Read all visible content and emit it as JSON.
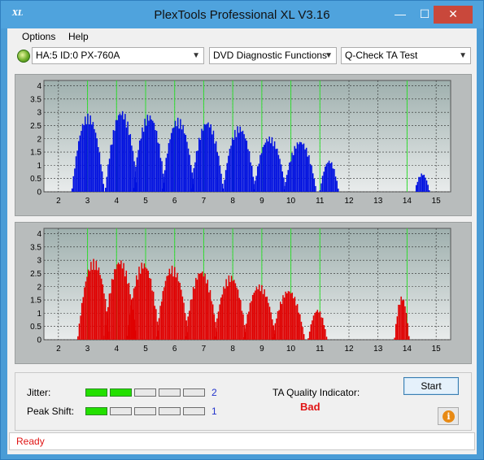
{
  "window": {
    "title": "PlexTools Professional XL V3.16",
    "icon_text": "XL"
  },
  "menu": {
    "options": "Options",
    "help": "Help"
  },
  "toolbar": {
    "drive": "HA:5 ID:0  PX-760A",
    "function": "DVD Diagnostic Functions",
    "test": "Q-Check TA Test"
  },
  "graphs": {
    "x_ticks": [
      "2",
      "3",
      "4",
      "5",
      "6",
      "7",
      "8",
      "9",
      "10",
      "11",
      "12",
      "13",
      "14",
      "15"
    ],
    "y_ticks": [
      "0",
      "0.5",
      "1",
      "1.5",
      "2",
      "2.5",
      "3",
      "3.5",
      "4"
    ],
    "green_lines": [
      3,
      4,
      5,
      6,
      7,
      8,
      9,
      10,
      11,
      14
    ],
    "top_color": "#0010e0",
    "bottom_color": "#e00000"
  },
  "chart_data": [
    {
      "type": "bar",
      "series": [
        {
          "name": "",
          "color": "#0010e0"
        }
      ],
      "xlim": [
        1.5,
        15.5
      ],
      "ylim": [
        0,
        4.2
      ],
      "peaks": [
        {
          "x": 3.0,
          "y": 2.95
        },
        {
          "x": 4.15,
          "y": 3.1
        },
        {
          "x": 5.1,
          "y": 2.95
        },
        {
          "x": 6.1,
          "y": 2.8
        },
        {
          "x": 7.1,
          "y": 2.7
        },
        {
          "x": 8.2,
          "y": 2.5
        },
        {
          "x": 9.25,
          "y": 2.1
        },
        {
          "x": 10.3,
          "y": 1.95
        },
        {
          "x": 11.3,
          "y": 1.2
        },
        {
          "x": 14.5,
          "y": 0.7
        }
      ]
    },
    {
      "type": "bar",
      "series": [
        {
          "name": "",
          "color": "#e00000"
        }
      ],
      "xlim": [
        1.5,
        15.5
      ],
      "ylim": [
        0,
        4.2
      ],
      "peaks": [
        {
          "x": 3.2,
          "y": 3.05
        },
        {
          "x": 4.1,
          "y": 3.05
        },
        {
          "x": 4.9,
          "y": 2.95
        },
        {
          "x": 5.9,
          "y": 2.8
        },
        {
          "x": 6.9,
          "y": 2.65
        },
        {
          "x": 7.9,
          "y": 2.45
        },
        {
          "x": 8.9,
          "y": 2.1
        },
        {
          "x": 9.9,
          "y": 1.9
        },
        {
          "x": 10.9,
          "y": 1.15
        },
        {
          "x": 13.8,
          "y": 1.65
        }
      ]
    }
  ],
  "bottom": {
    "jitter_label": "Jitter:",
    "jitter_value": "2",
    "jitter_level": 2,
    "peak_label": "Peak Shift:",
    "peak_value": "1",
    "peak_level": 1,
    "segments": 5,
    "ta_label": "TA Quality Indicator:",
    "ta_value": "Bad",
    "start_label": "Start",
    "info_icon": "info-icon"
  },
  "status": {
    "text": "Ready"
  }
}
